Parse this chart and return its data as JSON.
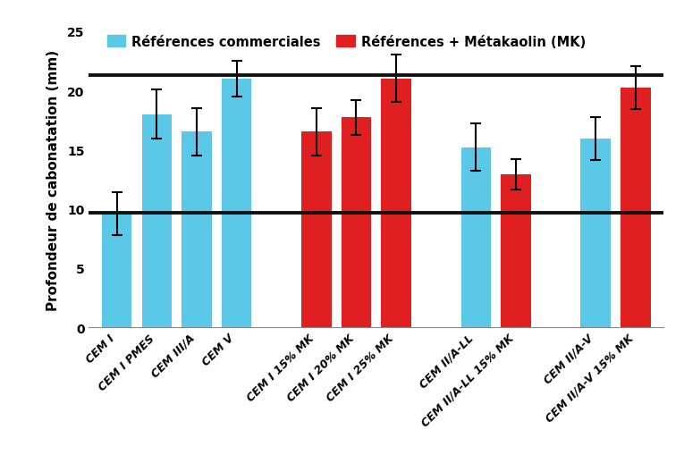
{
  "bars": [
    {
      "label": "CEM I",
      "value": 9.6,
      "error": 1.8,
      "color": "#5BC8E8",
      "x": 0
    },
    {
      "label": "CEM I PMES",
      "value": 18.0,
      "error": 2.1,
      "color": "#5BC8E8",
      "x": 1
    },
    {
      "label": "CEM III/A",
      "value": 16.5,
      "error": 2.0,
      "color": "#5BC8E8",
      "x": 2
    },
    {
      "label": "CEM V",
      "value": 21.0,
      "error": 1.5,
      "color": "#5BC8E8",
      "x": 3
    },
    {
      "label": "CEM I 15% MK",
      "value": 16.5,
      "error": 2.0,
      "color": "#E02020",
      "x": 5
    },
    {
      "label": "CEM I 20% MK",
      "value": 17.7,
      "error": 1.5,
      "color": "#E02020",
      "x": 6
    },
    {
      "label": "CEM I 25% MK",
      "value": 21.0,
      "error": 2.0,
      "color": "#E02020",
      "x": 7
    },
    {
      "label": "CEM II/A-LL",
      "value": 15.2,
      "error": 2.0,
      "color": "#5BC8E8",
      "x": 9
    },
    {
      "label": "CEM II/A-LL 15% MK",
      "value": 12.9,
      "error": 1.3,
      "color": "#E02020",
      "x": 10
    },
    {
      "label": "CEM II/A-V",
      "value": 15.9,
      "error": 1.8,
      "color": "#5BC8E8",
      "x": 12
    },
    {
      "label": "CEM II/A-V 15% MK",
      "value": 20.2,
      "error": 1.8,
      "color": "#E02020",
      "x": 13
    }
  ],
  "hline_high": 21.3,
  "hline_low": 9.7,
  "ylabel": "Profondeur de cabonatation (mm)",
  "ylim": [
    0,
    25
  ],
  "yticks": [
    0,
    5,
    10,
    15,
    20,
    25
  ],
  "bar_width": 0.75,
  "legend_blue_label": "Références commerciales",
  "legend_red_label": "Références + Métakaolin (MK)",
  "legend_blue_color": "#5BC8E8",
  "legend_red_color": "#E02020",
  "hline_color": "#111111",
  "hline_linewidth": 2.8,
  "background_color": "#ffffff",
  "axis_fontsize": 11,
  "tick_fontsize": 9,
  "legend_fontsize": 10.5
}
